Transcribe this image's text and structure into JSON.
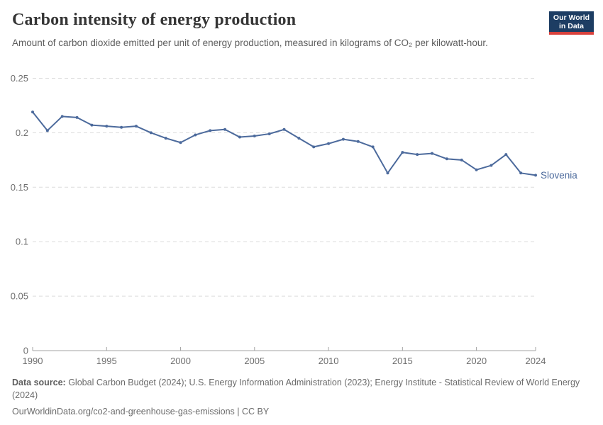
{
  "logo": {
    "line1": "Our World",
    "line2": "in Data"
  },
  "chart_data": {
    "type": "line",
    "title": "Carbon intensity of energy production",
    "subtitle": "Amount of carbon dioxide emitted per unit of energy production, measured in kilograms of CO₂ per kilowatt-hour.",
    "x": [
      1990,
      1991,
      1992,
      1993,
      1994,
      1995,
      1996,
      1997,
      1998,
      1999,
      2000,
      2001,
      2002,
      2003,
      2004,
      2005,
      2006,
      2007,
      2008,
      2009,
      2010,
      2011,
      2012,
      2013,
      2014,
      2015,
      2016,
      2017,
      2018,
      2019,
      2020,
      2021,
      2022,
      2023,
      2024
    ],
    "series": [
      {
        "name": "Slovenia",
        "color": "#4c6a9c",
        "values": [
          0.219,
          0.202,
          0.215,
          0.214,
          0.207,
          0.206,
          0.205,
          0.206,
          0.2,
          0.195,
          0.191,
          0.198,
          0.202,
          0.203,
          0.196,
          0.197,
          0.199,
          0.203,
          0.195,
          0.187,
          0.19,
          0.194,
          0.192,
          0.187,
          0.163,
          0.182,
          0.18,
          0.181,
          0.176,
          0.175,
          0.166,
          0.17,
          0.18,
          0.163,
          0.161
        ]
      }
    ],
    "xlim": [
      1990,
      2024
    ],
    "ylim": [
      0,
      0.25
    ],
    "x_ticks": [
      "1990",
      "1995",
      "2000",
      "2005",
      "2010",
      "2015",
      "2020",
      "2024"
    ],
    "y_ticks": [
      "0",
      "0.05",
      "0.1",
      "0.15",
      "0.2",
      "0.25"
    ],
    "grid": "horizontal-dashed",
    "legend_position": "end-of-line-label",
    "xlabel": "",
    "ylabel": ""
  },
  "footer": {
    "source_label": "Data source:",
    "source_text": " Global Carbon Budget (2024); U.S. Energy Information Administration (2023); Energy Institute - Statistical Review of World Energy (2024)",
    "link_text": "OurWorldinData.org/co2-and-greenhouse-gas-emissions | CC BY"
  },
  "colors": {
    "line": "#4c6a9c",
    "logo_bg": "#1d3d63",
    "logo_accent": "#d8413c",
    "grid": "#dcdcdc",
    "axis": "#a3a3a3",
    "tick_text": "#6e6e6e"
  }
}
